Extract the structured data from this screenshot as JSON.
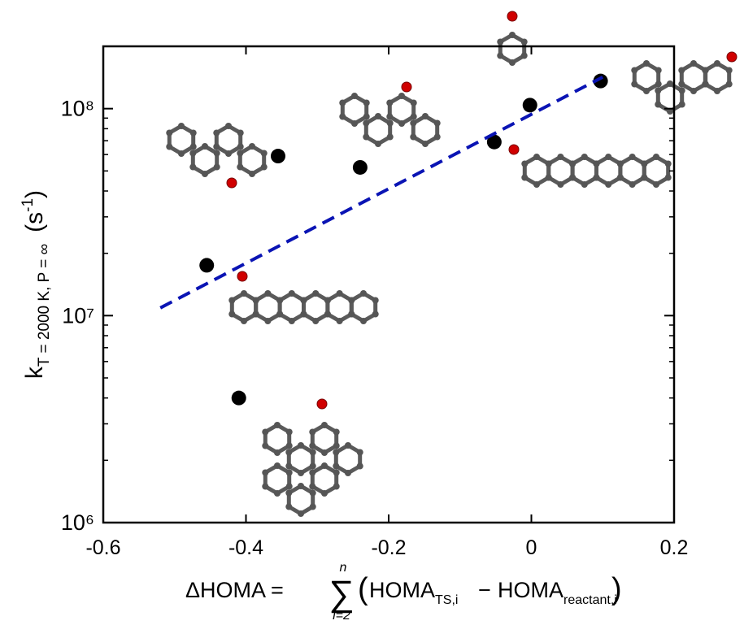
{
  "chart_data": {
    "type": "scatter",
    "log_y": true,
    "xlim": [
      -0.6,
      0.2
    ],
    "xticks": [
      -0.6,
      -0.4,
      -0.2,
      0,
      0.2
    ],
    "ylim": [
      1000000,
      200000000
    ],
    "yticks": [
      {
        "value": 1000000,
        "label": "10⁶"
      },
      {
        "value": 10000000,
        "label": "10⁷"
      },
      {
        "value": 100000000,
        "label": "10⁸"
      }
    ],
    "yminorticks": [
      2000000,
      3000000,
      4000000,
      5000000,
      6000000,
      7000000,
      8000000,
      9000000,
      20000000,
      30000000,
      40000000,
      50000000,
      60000000,
      70000000,
      80000000,
      90000000,
      200000000
    ],
    "series": [
      {
        "kind": "points",
        "color": "#000000",
        "x": [
          -0.455,
          -0.41,
          -0.355,
          -0.24,
          -0.052,
          -0.002,
          0.097
        ],
        "values": [
          17500000,
          4000000,
          59000000,
          52000000,
          69000000,
          104000000,
          136000000
        ]
      },
      {
        "kind": "dashed-line",
        "color": "#0a14b4",
        "x": [
          -0.52,
          0.1
        ],
        "values": [
          10900000,
          142000000
        ]
      }
    ],
    "ylabel": {
      "main": "k",
      "sub": "T = 2000 K, P = ∞",
      "unit_open": "(s",
      "unit_sup": "-1",
      "unit_close": ")"
    },
    "xlabel": {
      "lhs": "ΔHOMA =",
      "sum": "∑",
      "upper": "n",
      "lower": "i=2",
      "open": "(",
      "term1": "HOMA",
      "sub1": "TS,i",
      "minus": "−",
      "term2": "HOMA",
      "sub2": "reactant,i",
      "close": ")"
    }
  }
}
